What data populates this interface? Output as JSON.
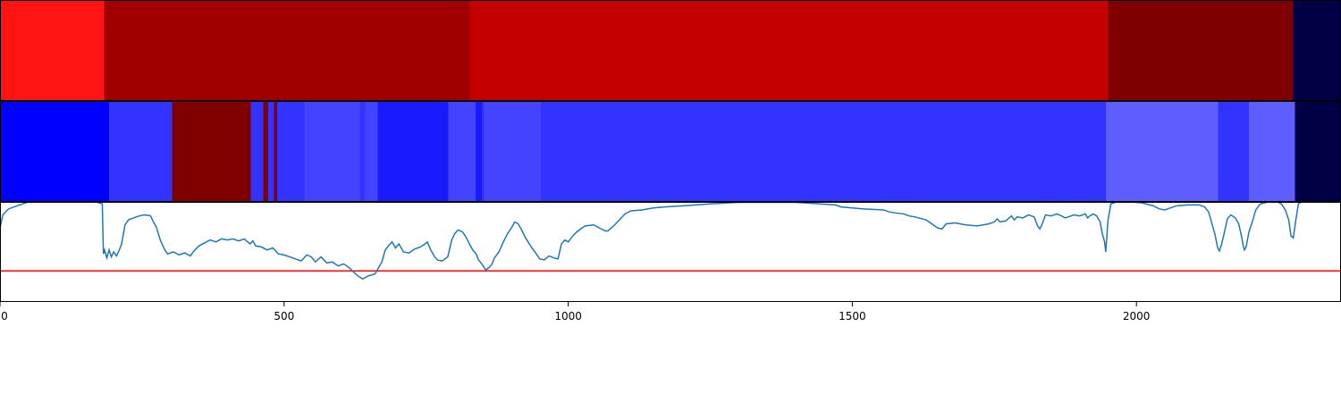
{
  "chart_data": [
    {
      "type": "heatmap",
      "xlim": [
        0,
        2360
      ],
      "segments": [
        {
          "start": 0,
          "end": 183,
          "color": "#ff1414"
        },
        {
          "start": 183,
          "end": 827,
          "color": "#a00000"
        },
        {
          "start": 827,
          "end": 1950,
          "color": "#c40000"
        },
        {
          "start": 1950,
          "end": 2276,
          "color": "#7f0000"
        },
        {
          "start": 2276,
          "end": 2360,
          "color": "#000045"
        }
      ]
    },
    {
      "type": "heatmap",
      "xlim": [
        0,
        2360
      ],
      "segments": [
        {
          "start": 0,
          "end": 192,
          "color": "#0000ff"
        },
        {
          "start": 192,
          "end": 303,
          "color": "#3333ff"
        },
        {
          "start": 303,
          "end": 441,
          "color": "#800000"
        },
        {
          "start": 441,
          "end": 463,
          "color": "#3333ff"
        },
        {
          "start": 463,
          "end": 472,
          "color": "#800000"
        },
        {
          "start": 472,
          "end": 482,
          "color": "#3333ff"
        },
        {
          "start": 482,
          "end": 488,
          "color": "#800000"
        },
        {
          "start": 488,
          "end": 536,
          "color": "#3333ff"
        },
        {
          "start": 536,
          "end": 633,
          "color": "#4444ff"
        },
        {
          "start": 633,
          "end": 643,
          "color": "#3333ff"
        },
        {
          "start": 643,
          "end": 665,
          "color": "#4444ff"
        },
        {
          "start": 665,
          "end": 788,
          "color": "#1a1aff"
        },
        {
          "start": 788,
          "end": 790,
          "color": "#3333ff"
        },
        {
          "start": 790,
          "end": 837,
          "color": "#4444ff"
        },
        {
          "start": 837,
          "end": 848,
          "color": "#1a1aff"
        },
        {
          "start": 848,
          "end": 852,
          "color": "#3333ff"
        },
        {
          "start": 852,
          "end": 952,
          "color": "#4444ff"
        },
        {
          "start": 952,
          "end": 1946,
          "color": "#3333ff"
        },
        {
          "start": 1946,
          "end": 2144,
          "color": "#5e5eff"
        },
        {
          "start": 2144,
          "end": 2198,
          "color": "#3333ff"
        },
        {
          "start": 2198,
          "end": 2279,
          "color": "#5e5eff"
        },
        {
          "start": 2279,
          "end": 2360,
          "color": "#000045"
        }
      ]
    },
    {
      "type": "line",
      "xlim": [
        0,
        2360
      ],
      "ylim": [
        0,
        1
      ],
      "xticks": [
        "0",
        "500",
        "1000",
        "1500",
        "2000"
      ],
      "xtick_values": [
        0,
        500,
        1000,
        1500,
        2000
      ],
      "threshold": {
        "y": 0.31,
        "color": "#ff0000"
      },
      "series": [
        {
          "color": "#1f77b4",
          "points": [
            [
              0,
              0.74
            ],
            [
              5,
              0.87
            ],
            [
              15,
              0.93
            ],
            [
              30,
              0.96
            ],
            [
              50,
              1.0
            ],
            [
              170,
              1.0
            ],
            [
              180,
              0.98
            ],
            [
              182,
              0.48
            ],
            [
              184,
              0.52
            ],
            [
              188,
              0.44
            ],
            [
              192,
              0.52
            ],
            [
              196,
              0.45
            ],
            [
              200,
              0.5
            ],
            [
              205,
              0.46
            ],
            [
              210,
              0.52
            ],
            [
              214,
              0.58
            ],
            [
              220,
              0.77
            ],
            [
              226,
              0.82
            ],
            [
              235,
              0.84
            ],
            [
              245,
              0.86
            ],
            [
              255,
              0.87
            ],
            [
              265,
              0.86
            ],
            [
              270,
              0.8
            ],
            [
              275,
              0.75
            ],
            [
              282,
              0.62
            ],
            [
              290,
              0.52
            ],
            [
              295,
              0.48
            ],
            [
              305,
              0.5
            ],
            [
              315,
              0.47
            ],
            [
              325,
              0.49
            ],
            [
              335,
              0.46
            ],
            [
              340,
              0.5
            ],
            [
              350,
              0.56
            ],
            [
              360,
              0.59
            ],
            [
              370,
              0.62
            ],
            [
              380,
              0.6
            ],
            [
              390,
              0.63
            ],
            [
              400,
              0.62
            ],
            [
              410,
              0.63
            ],
            [
              420,
              0.61
            ],
            [
              430,
              0.63
            ],
            [
              440,
              0.58
            ],
            [
              445,
              0.61
            ],
            [
              450,
              0.56
            ],
            [
              460,
              0.55
            ],
            [
              470,
              0.52
            ],
            [
              480,
              0.54
            ],
            [
              490,
              0.48
            ],
            [
              500,
              0.47
            ],
            [
              510,
              0.45
            ],
            [
              520,
              0.43
            ],
            [
              530,
              0.41
            ],
            [
              535,
              0.44
            ],
            [
              540,
              0.47
            ],
            [
              548,
              0.45
            ],
            [
              555,
              0.4
            ],
            [
              565,
              0.45
            ],
            [
              575,
              0.39
            ],
            [
              585,
              0.4
            ],
            [
              595,
              0.36
            ],
            [
              605,
              0.38
            ],
            [
              615,
              0.34
            ],
            [
              622,
              0.3
            ],
            [
              630,
              0.26
            ],
            [
              638,
              0.23
            ],
            [
              648,
              0.26
            ],
            [
              660,
              0.28
            ],
            [
              666,
              0.34
            ],
            [
              672,
              0.4
            ],
            [
              678,
              0.52
            ],
            [
              685,
              0.57
            ],
            [
              690,
              0.6
            ],
            [
              696,
              0.54
            ],
            [
              702,
              0.58
            ],
            [
              710,
              0.5
            ],
            [
              720,
              0.49
            ],
            [
              730,
              0.53
            ],
            [
              740,
              0.55
            ],
            [
              748,
              0.58
            ],
            [
              752,
              0.6
            ],
            [
              758,
              0.52
            ],
            [
              765,
              0.45
            ],
            [
              770,
              0.42
            ],
            [
              778,
              0.41
            ],
            [
              788,
              0.45
            ],
            [
              795,
              0.62
            ],
            [
              800,
              0.68
            ],
            [
              806,
              0.72
            ],
            [
              814,
              0.7
            ],
            [
              820,
              0.65
            ],
            [
              826,
              0.58
            ],
            [
              832,
              0.52
            ],
            [
              838,
              0.48
            ],
            [
              842,
              0.42
            ],
            [
              848,
              0.38
            ],
            [
              855,
              0.32
            ],
            [
              862,
              0.35
            ],
            [
              866,
              0.38
            ],
            [
              870,
              0.44
            ],
            [
              878,
              0.5
            ],
            [
              885,
              0.59
            ],
            [
              893,
              0.68
            ],
            [
              900,
              0.74
            ],
            [
              906,
              0.8
            ],
            [
              912,
              0.78
            ],
            [
              918,
              0.72
            ],
            [
              925,
              0.64
            ],
            [
              935,
              0.55
            ],
            [
              945,
              0.47
            ],
            [
              950,
              0.43
            ],
            [
              958,
              0.42
            ],
            [
              966,
              0.46
            ],
            [
              975,
              0.44
            ],
            [
              982,
              0.43
            ],
            [
              988,
              0.58
            ],
            [
              994,
              0.62
            ],
            [
              1000,
              0.6
            ],
            [
              1008,
              0.66
            ],
            [
              1015,
              0.7
            ],
            [
              1022,
              0.73
            ],
            [
              1030,
              0.76
            ],
            [
              1045,
              0.77
            ],
            [
              1058,
              0.73
            ],
            [
              1065,
              0.71
            ],
            [
              1070,
              0.71
            ],
            [
              1080,
              0.76
            ],
            [
              1090,
              0.82
            ],
            [
              1100,
              0.88
            ],
            [
              1110,
              0.91
            ],
            [
              1130,
              0.92
            ],
            [
              1150,
              0.94
            ],
            [
              1170,
              0.95
            ],
            [
              1200,
              0.96
            ],
            [
              1250,
              0.98
            ],
            [
              1300,
              0.995
            ],
            [
              1400,
              0.995
            ],
            [
              1470,
              0.97
            ],
            [
              1480,
              0.95
            ],
            [
              1500,
              0.94
            ],
            [
              1520,
              0.93
            ],
            [
              1555,
              0.92
            ],
            [
              1565,
              0.9
            ],
            [
              1575,
              0.89
            ],
            [
              1590,
              0.88
            ],
            [
              1600,
              0.86
            ],
            [
              1610,
              0.85
            ],
            [
              1630,
              0.82
            ],
            [
              1640,
              0.78
            ],
            [
              1650,
              0.74
            ],
            [
              1658,
              0.73
            ],
            [
              1665,
              0.78
            ],
            [
              1680,
              0.79
            ],
            [
              1700,
              0.77
            ],
            [
              1720,
              0.76
            ],
            [
              1740,
              0.78
            ],
            [
              1750,
              0.8
            ],
            [
              1755,
              0.83
            ],
            [
              1760,
              0.8
            ],
            [
              1770,
              0.81
            ],
            [
              1780,
              0.86
            ],
            [
              1785,
              0.82
            ],
            [
              1790,
              0.85
            ],
            [
              1800,
              0.84
            ],
            [
              1810,
              0.87
            ],
            [
              1820,
              0.85
            ],
            [
              1826,
              0.76
            ],
            [
              1830,
              0.73
            ],
            [
              1835,
              0.79
            ],
            [
              1840,
              0.87
            ],
            [
              1850,
              0.86
            ],
            [
              1860,
              0.88
            ],
            [
              1868,
              0.86
            ],
            [
              1875,
              0.84
            ],
            [
              1880,
              0.85
            ],
            [
              1890,
              0.87
            ],
            [
              1900,
              0.86
            ],
            [
              1910,
              0.88
            ],
            [
              1914,
              0.84
            ],
            [
              1918,
              0.86
            ],
            [
              1924,
              0.88
            ],
            [
              1930,
              0.86
            ],
            [
              1936,
              0.8
            ],
            [
              1940,
              0.68
            ],
            [
              1944,
              0.6
            ],
            [
              1946,
              0.5
            ],
            [
              1950,
              0.82
            ],
            [
              1955,
              0.98
            ],
            [
              1965,
              1.0
            ],
            [
              1990,
              1.0
            ],
            [
              2010,
              0.99
            ],
            [
              2030,
              0.96
            ],
            [
              2040,
              0.93
            ],
            [
              2050,
              0.92
            ],
            [
              2060,
              0.94
            ],
            [
              2070,
              0.96
            ],
            [
              2090,
              0.97
            ],
            [
              2110,
              0.97
            ],
            [
              2120,
              0.95
            ],
            [
              2127,
              0.9
            ],
            [
              2132,
              0.8
            ],
            [
              2138,
              0.68
            ],
            [
              2143,
              0.54
            ],
            [
              2146,
              0.51
            ],
            [
              2150,
              0.58
            ],
            [
              2155,
              0.7
            ],
            [
              2160,
              0.83
            ],
            [
              2166,
              0.87
            ],
            [
              2174,
              0.84
            ],
            [
              2180,
              0.78
            ],
            [
              2184,
              0.68
            ],
            [
              2188,
              0.56
            ],
            [
              2190,
              0.52
            ],
            [
              2193,
              0.55
            ],
            [
              2198,
              0.7
            ],
            [
              2205,
              0.82
            ],
            [
              2210,
              0.92
            ],
            [
              2218,
              0.98
            ],
            [
              2232,
              1.0
            ],
            [
              2248,
              1.0
            ],
            [
              2255,
              0.98
            ],
            [
              2262,
              0.92
            ],
            [
              2268,
              0.82
            ],
            [
              2272,
              0.66
            ],
            [
              2276,
              0.64
            ],
            [
              2280,
              0.8
            ],
            [
              2285,
              0.98
            ],
            [
              2290,
              1.0
            ],
            [
              2296,
              1.0
            ]
          ]
        }
      ]
    }
  ]
}
